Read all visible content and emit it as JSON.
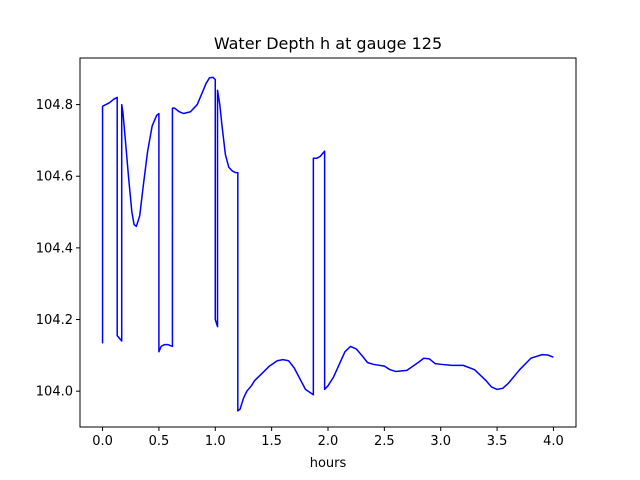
{
  "chart_data": {
    "type": "line",
    "title": "Water Depth h at gauge 125",
    "xlabel": "hours",
    "ylabel": "",
    "xlim": [
      -0.2,
      4.2
    ],
    "ylim": [
      103.9,
      104.93
    ],
    "xticks": [
      0.0,
      0.5,
      1.0,
      1.5,
      2.0,
      2.5,
      3.0,
      3.5,
      4.0
    ],
    "xtick_labels": [
      "0.0",
      "0.5",
      "1.0",
      "1.5",
      "2.0",
      "2.5",
      "3.0",
      "3.5",
      "4.0"
    ],
    "yticks": [
      104.0,
      104.2,
      104.4,
      104.6,
      104.8
    ],
    "ytick_labels": [
      "104.0",
      "104.2",
      "104.4",
      "104.6",
      "104.8"
    ],
    "grid": false,
    "series": [
      {
        "color": "#0000ff",
        "x": [
          0.0,
          0.0,
          0.0,
          0.01,
          0.03,
          0.06,
          0.1,
          0.13,
          0.13,
          0.17,
          0.17,
          0.18,
          0.2,
          0.23,
          0.26,
          0.28,
          0.3,
          0.33,
          0.36,
          0.4,
          0.44,
          0.48,
          0.5,
          0.5,
          0.5,
          0.52,
          0.55,
          0.58,
          0.62,
          0.62,
          0.64,
          0.68,
          0.72,
          0.78,
          0.84,
          0.88,
          0.92,
          0.95,
          0.98,
          1.0,
          1.0,
          1.02,
          1.02,
          1.02,
          1.04,
          1.06,
          1.09,
          1.12,
          1.15,
          1.18,
          1.2,
          1.2,
          1.22,
          1.25,
          1.28,
          1.32,
          1.35,
          1.4,
          1.48,
          1.55,
          1.6,
          1.65,
          1.7,
          1.75,
          1.8,
          1.87,
          1.87,
          1.9,
          1.93,
          1.97,
          1.97,
          2.0,
          2.05,
          2.1,
          2.15,
          2.2,
          2.25,
          2.3,
          2.35,
          2.4,
          2.5,
          2.55,
          2.6,
          2.7,
          2.8,
          2.85,
          2.9,
          2.95,
          3.0,
          3.1,
          3.2,
          3.3,
          3.4,
          3.45,
          3.5,
          3.55,
          3.6,
          3.7,
          3.8,
          3.9,
          3.95,
          4.0
        ],
        "y": [
          104.17,
          104.135,
          104.795,
          104.797,
          104.8,
          104.805,
          104.815,
          104.82,
          104.155,
          104.14,
          104.8,
          104.78,
          104.71,
          104.6,
          104.5,
          104.465,
          104.46,
          104.49,
          104.57,
          104.67,
          104.74,
          104.77,
          104.775,
          104.11,
          104.11,
          104.125,
          104.13,
          104.13,
          104.125,
          104.79,
          104.79,
          104.78,
          104.775,
          104.78,
          104.8,
          104.83,
          104.86,
          104.875,
          104.876,
          104.87,
          104.2,
          104.18,
          104.84,
          104.84,
          104.8,
          104.74,
          104.66,
          104.625,
          104.615,
          104.61,
          104.61,
          103.945,
          103.95,
          103.98,
          104.0,
          104.015,
          104.03,
          104.045,
          104.07,
          104.085,
          104.088,
          104.085,
          104.065,
          104.035,
          104.005,
          103.99,
          104.65,
          104.65,
          104.655,
          104.67,
          104.005,
          104.015,
          104.04,
          104.075,
          104.11,
          104.125,
          104.118,
          104.1,
          104.08,
          104.075,
          104.07,
          104.06,
          104.055,
          104.058,
          104.08,
          104.092,
          104.09,
          104.077,
          104.075,
          104.072,
          104.072,
          104.06,
          104.03,
          104.012,
          104.005,
          104.008,
          104.022,
          104.06,
          104.092,
          104.102,
          104.101,
          104.095
        ]
      }
    ]
  }
}
